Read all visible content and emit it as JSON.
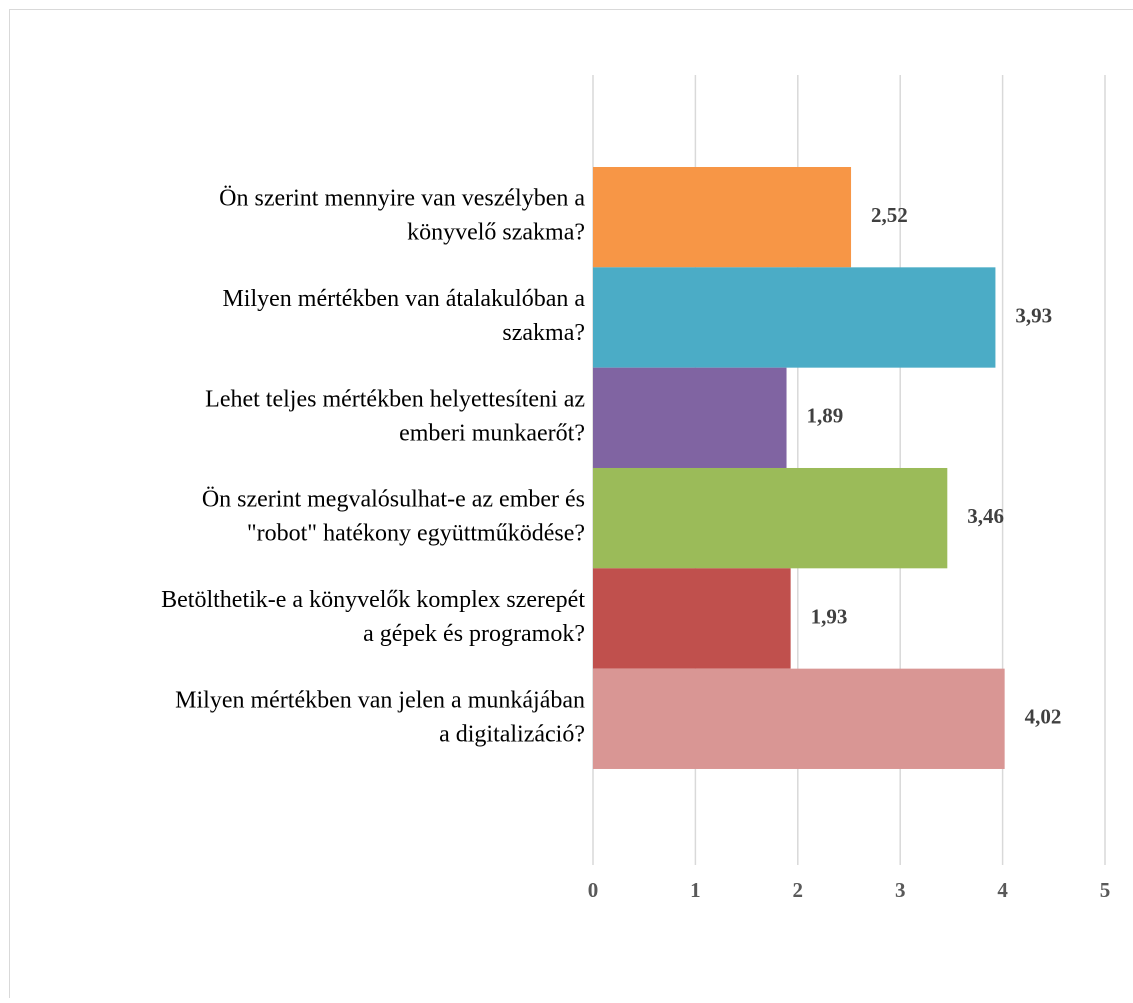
{
  "chart_data": {
    "type": "bar",
    "orientation": "horizontal",
    "categories": [
      [
        "Ön szerint mennyire van veszélyben a",
        "könyvelő szakma?"
      ],
      [
        "Milyen mértékben van átalakulóban a",
        "szakma?"
      ],
      [
        "Lehet teljes mértékben helyettesíteni az",
        "emberi munkaerőt?"
      ],
      [
        "Ön szerint megvalósulhat-e az ember és",
        "\"robot\" hatékony együttműködése?"
      ],
      [
        "Betölthetik-e a könyvelők komplex szerepét",
        "a gépek és programok?"
      ],
      [
        "Milyen mértékben van jelen a munkájában",
        "a digitalizáció?"
      ]
    ],
    "values": [
      2.52,
      3.93,
      1.89,
      3.46,
      1.93,
      4.02
    ],
    "value_labels": [
      "2,52",
      "3,93",
      "1,89",
      "3,46",
      "1,93",
      "4,02"
    ],
    "colors": [
      "#f79646",
      "#4bacc6",
      "#8064a2",
      "#9bbb59",
      "#c0504d",
      "#d99694"
    ],
    "xlim": [
      0,
      5
    ],
    "xticks": [
      0,
      1,
      2,
      3,
      4,
      5
    ],
    "grid": true
  }
}
